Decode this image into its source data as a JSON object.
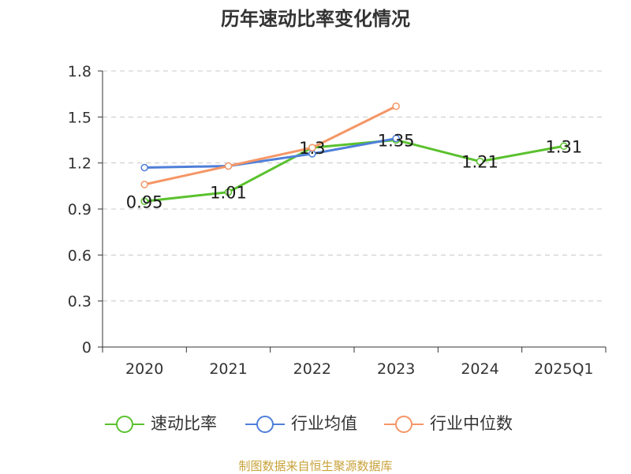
{
  "chart_data": {
    "type": "line",
    "title": "历年速动比率变化情况",
    "categories": [
      "2020",
      "2021",
      "2022",
      "2023",
      "2024",
      "2025Q1"
    ],
    "y_ticks": [
      "0",
      "0.3",
      "0.6",
      "0.9",
      "1.2",
      "1.5",
      "1.8"
    ],
    "ylim": [
      0,
      1.8
    ],
    "grid": "horizontal dashed",
    "legend_position": "bottom",
    "series": [
      {
        "name": "速动比率",
        "color": "#5ac12e",
        "values": [
          0.95,
          1.01,
          1.3,
          1.35,
          1.21,
          1.31
        ],
        "labels": [
          "0.95",
          "1.01",
          "1.3",
          "1.35",
          "1.21",
          "1.31"
        ]
      },
      {
        "name": "行业均值",
        "color": "#4f7fd9",
        "values": [
          1.17,
          1.18,
          1.26,
          1.36,
          null,
          null
        ]
      },
      {
        "name": "行业中位数",
        "color": "#f59666",
        "values": [
          1.06,
          1.18,
          1.3,
          1.57,
          null,
          null
        ]
      }
    ]
  },
  "source_note": "制图数据来自恒生聚源数据库"
}
